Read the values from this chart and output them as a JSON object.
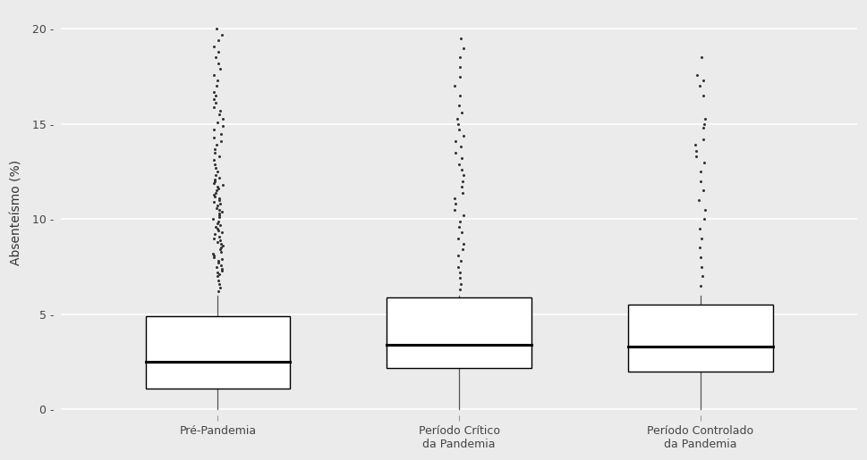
{
  "ylabel": "Absenteísmo (%)",
  "background_color": "#EBEBEB",
  "grid_color": "#FFFFFF",
  "categories": [
    "Pré-Pandemia",
    "Período Crítico\nda Pandemia",
    "Período Controlado\nda Pandemia"
  ],
  "box_data": [
    {
      "q1": 1.1,
      "median": 2.5,
      "q3": 4.9,
      "whisker_low": 0.0,
      "whisker_high": 6.0,
      "fliers_above": [
        6.2,
        6.4,
        6.6,
        6.8,
        7.0,
        7.1,
        7.2,
        7.3,
        7.4,
        7.5,
        7.6,
        7.7,
        7.8,
        7.9,
        8.0,
        8.1,
        8.2,
        8.3,
        8.4,
        8.5,
        8.6,
        8.7,
        8.8,
        8.9,
        9.0,
        9.1,
        9.2,
        9.3,
        9.4,
        9.5,
        9.6,
        9.7,
        9.8,
        9.9,
        10.0,
        10.1,
        10.2,
        10.3,
        10.4,
        10.5,
        10.6,
        10.7,
        10.8,
        10.9,
        11.0,
        11.1,
        11.2,
        11.3,
        11.4,
        11.5,
        11.6,
        11.7,
        11.8,
        11.9,
        12.0,
        12.1,
        12.2,
        12.3,
        12.5,
        12.7,
        12.9,
        13.1,
        13.3,
        13.5,
        13.7,
        13.9,
        14.1,
        14.3,
        14.5,
        14.7,
        14.9,
        15.1,
        15.3,
        15.5,
        15.7,
        15.9,
        16.1,
        16.3,
        16.5,
        16.7,
        17.0,
        17.3,
        17.6,
        17.9,
        18.2,
        18.5,
        18.8,
        19.1,
        19.4,
        19.7,
        20.0
      ]
    },
    {
      "q1": 2.2,
      "median": 3.4,
      "q3": 5.9,
      "whisker_low": 0.0,
      "whisker_high": 6.0,
      "fliers_above": [
        6.3,
        6.6,
        6.9,
        7.2,
        7.5,
        7.8,
        8.1,
        8.4,
        8.7,
        9.0,
        9.3,
        9.6,
        9.9,
        10.2,
        10.5,
        10.8,
        11.1,
        11.4,
        11.7,
        12.0,
        12.3,
        12.6,
        12.9,
        13.2,
        13.5,
        13.8,
        14.1,
        14.4,
        14.7,
        15.0,
        15.3,
        15.6,
        16.0,
        16.5,
        17.0,
        17.5,
        18.0,
        18.5,
        19.0,
        19.5
      ]
    },
    {
      "q1": 2.0,
      "median": 3.3,
      "q3": 5.5,
      "whisker_low": 0.0,
      "whisker_high": 6.0,
      "fliers_above": [
        6.5,
        7.0,
        7.5,
        8.0,
        8.5,
        9.0,
        9.5,
        10.0,
        10.5,
        11.0,
        11.5,
        12.0,
        12.5,
        13.0,
        13.3,
        13.6,
        13.9,
        14.2,
        14.8,
        15.0,
        15.3,
        16.5,
        17.0,
        17.3,
        17.6,
        18.5
      ]
    }
  ],
  "ylim": [
    -0.3,
    21.0
  ],
  "yticks": [
    0,
    5,
    10,
    15,
    20
  ],
  "ytick_labels": [
    "0 -",
    "5 -",
    "10 -",
    "15 -",
    "20 -"
  ],
  "box_width": 0.6,
  "box_color": "#FFFFFF",
  "median_color": "#000000",
  "whisker_color": "#555555",
  "flier_color": "#333333",
  "flier_size": 2.2,
  "figsize": [
    9.69,
    5.15
  ],
  "dpi": 100
}
